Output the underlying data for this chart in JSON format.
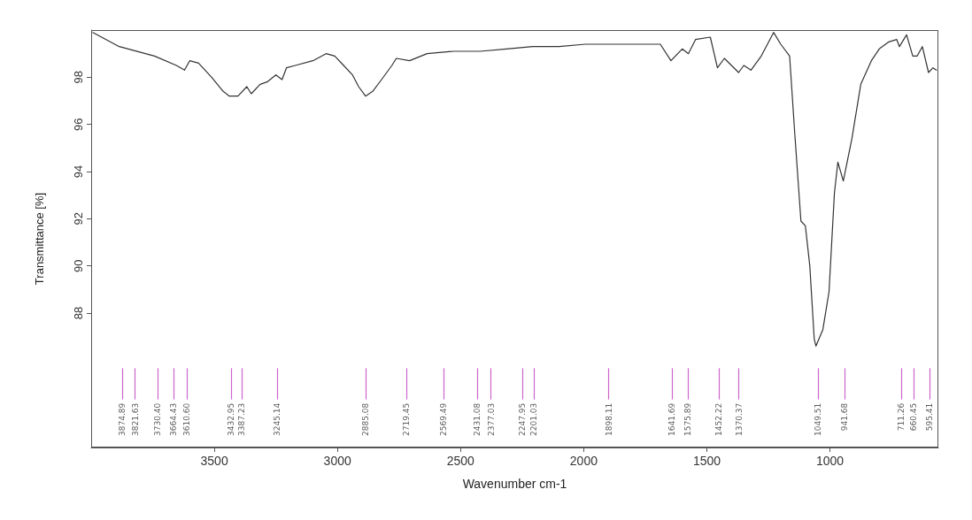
{
  "chart_data": {
    "type": "line",
    "xlabel": "Wavenumber cm-1",
    "ylabel": "Transmittance [%]",
    "xlim": [
      4000,
      560
    ],
    "xticks": [
      3500,
      3000,
      2500,
      2000,
      1500,
      1000
    ],
    "ylim": [
      82.3,
      100
    ],
    "yticks": [
      88,
      90,
      92,
      94,
      96,
      98
    ],
    "grid": false,
    "marker": "none",
    "line_style": "solid",
    "series": [
      {
        "color": "#333333",
        "x": [
          3993,
          3886,
          3743,
          3654,
          3621,
          3600,
          3564,
          3511,
          3464,
          3439,
          3404,
          3368,
          3350,
          3314,
          3286,
          3250,
          3225,
          3207,
          3171,
          3100,
          3046,
          3011,
          2975,
          2939,
          2914,
          2886,
          2857,
          2821,
          2779,
          2761,
          2707,
          2636,
          2529,
          2421,
          2314,
          2207,
          2100,
          1993,
          1886,
          1689,
          1646,
          1600,
          1575,
          1546,
          1486,
          1457,
          1429,
          1371,
          1350,
          1321,
          1279,
          1229,
          1200,
          1164,
          1143,
          1118,
          1100,
          1082,
          1064,
          1057,
          1029,
          1004,
          982,
          968,
          946,
          911,
          875,
          832,
          800,
          761,
          729,
          718,
          689,
          664,
          646,
          625,
          600,
          582,
          568
        ],
        "values": [
          99.9,
          99.3,
          98.9,
          98.5,
          98.3,
          98.7,
          98.6,
          98.0,
          97.4,
          97.2,
          97.2,
          97.6,
          97.3,
          97.7,
          97.8,
          98.1,
          97.9,
          98.4,
          98.5,
          98.7,
          99.0,
          98.9,
          98.5,
          98.1,
          97.6,
          97.2,
          97.4,
          97.9,
          98.5,
          98.8,
          98.7,
          99.0,
          99.1,
          99.1,
          99.2,
          99.3,
          99.3,
          99.4,
          99.4,
          99.4,
          98.7,
          99.2,
          99.0,
          99.6,
          99.7,
          98.4,
          98.8,
          98.2,
          98.5,
          98.3,
          98.9,
          99.9,
          99.4,
          98.9,
          95.6,
          91.9,
          91.7,
          90.0,
          86.9,
          86.6,
          87.3,
          88.9,
          93.1,
          94.4,
          93.6,
          95.4,
          97.7,
          98.7,
          99.2,
          99.5,
          99.6,
          99.3,
          99.8,
          98.9,
          98.9,
          99.3,
          98.2,
          98.4,
          98.3
        ]
      }
    ],
    "ref_lines": [
      {
        "axis": "x",
        "value": 3874.89,
        "label": "3874.89",
        "color": "#cc66cc"
      },
      {
        "axis": "x",
        "value": 3821.63,
        "label": "3821.63",
        "color": "#cc66cc"
      },
      {
        "axis": "x",
        "value": 3730.4,
        "label": "3730.40",
        "color": "#cc66cc"
      },
      {
        "axis": "x",
        "value": 3664.43,
        "label": "3664.43",
        "color": "#cc66cc"
      },
      {
        "axis": "x",
        "value": 3610.6,
        "label": "3610.60",
        "color": "#cc66cc"
      },
      {
        "axis": "x",
        "value": 3432.95,
        "label": "3432.95",
        "color": "#cc66cc"
      },
      {
        "axis": "x",
        "value": 3387.23,
        "label": "3387.23",
        "color": "#cc66cc"
      },
      {
        "axis": "x",
        "value": 3245.14,
        "label": "3245.14",
        "color": "#cc66cc"
      },
      {
        "axis": "x",
        "value": 2885.08,
        "label": "2885.08",
        "color": "#cc66cc"
      },
      {
        "axis": "x",
        "value": 2719.45,
        "label": "2719.45",
        "color": "#cc66cc"
      },
      {
        "axis": "x",
        "value": 2569.49,
        "label": "2569.49",
        "color": "#cc66cc"
      },
      {
        "axis": "x",
        "value": 2431.08,
        "label": "2431.08",
        "color": "#cc66cc"
      },
      {
        "axis": "x",
        "value": 2377.03,
        "label": "2377.03",
        "color": "#cc66cc"
      },
      {
        "axis": "x",
        "value": 2247.95,
        "label": "2247.95",
        "color": "#cc66cc"
      },
      {
        "axis": "x",
        "value": 2201.03,
        "label": "2201.03",
        "color": "#cc66cc"
      },
      {
        "axis": "x",
        "value": 1898.11,
        "label": "1898.11",
        "color": "#cc66cc"
      },
      {
        "axis": "x",
        "value": 1641.69,
        "label": "1641.69",
        "color": "#cc66cc"
      },
      {
        "axis": "x",
        "value": 1575.89,
        "label": "1575.89",
        "color": "#cc66cc"
      },
      {
        "axis": "x",
        "value": 1452.22,
        "label": "1452.22",
        "color": "#cc66cc"
      },
      {
        "axis": "x",
        "value": 1370.37,
        "label": "1370.37",
        "color": "#cc66cc"
      },
      {
        "axis": "x",
        "value": 1049.51,
        "label": "1049.51",
        "color": "#cc66cc"
      },
      {
        "axis": "x",
        "value": 941.68,
        "label": "941.68",
        "color": "#cc66cc"
      },
      {
        "axis": "x",
        "value": 711.26,
        "label": "711.26",
        "color": "#cc66cc"
      },
      {
        "axis": "x",
        "value": 660.45,
        "label": "660.45",
        "color": "#cc66cc"
      },
      {
        "axis": "x",
        "value": 595.41,
        "label": "595.41",
        "color": "#cc66cc"
      }
    ]
  }
}
